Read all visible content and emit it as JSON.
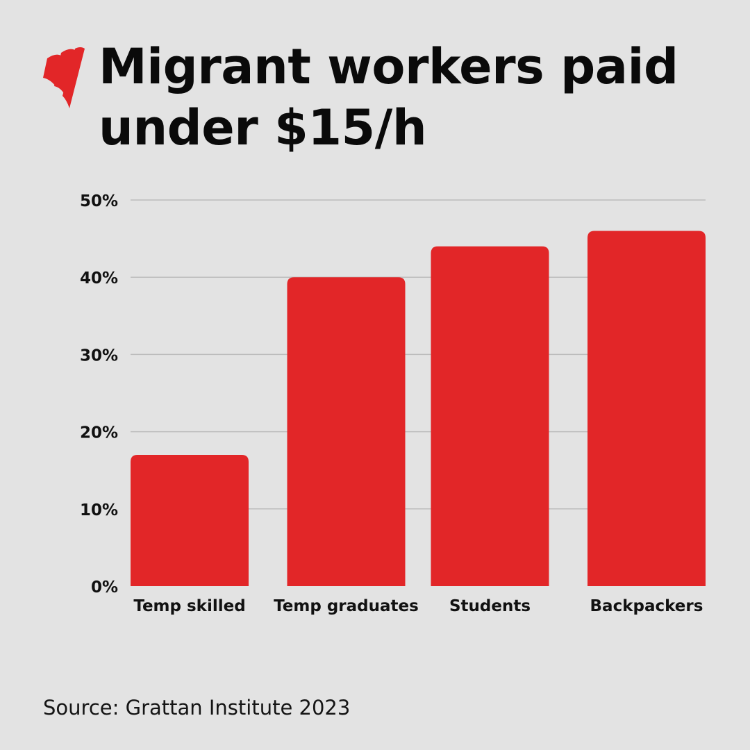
{
  "header": {
    "title_line1": "Migrant workers paid",
    "title_line2": "under $15/h"
  },
  "brand": {
    "logo_icon": "sbs-logo-icon",
    "accent_color": "#e22628"
  },
  "chart_data": {
    "type": "bar",
    "title": "Migrant workers paid under $15/h",
    "xlabel": "",
    "ylabel": "",
    "categories": [
      "Temp skilled",
      "Temp graduates",
      "Students",
      "Backpackers"
    ],
    "values": [
      17,
      40,
      44,
      46
    ],
    "unit": "%",
    "ylim": [
      0,
      50
    ],
    "yticks": [
      "0%",
      "10%",
      "20%",
      "30%",
      "40%",
      "50%"
    ],
    "ytick_values": [
      0,
      10,
      20,
      30,
      40,
      50
    ],
    "grid": true,
    "legend": "none",
    "bar_color": "#e22628",
    "grid_color": "#bdbdbd"
  },
  "footer": {
    "source": "Source: Grattan Institute 2023"
  }
}
